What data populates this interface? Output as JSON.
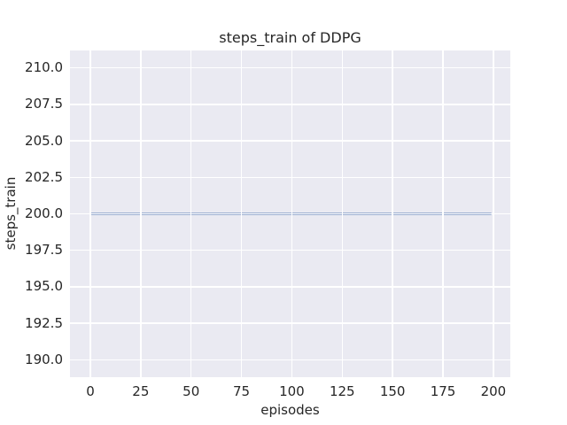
{
  "chart_data": {
    "type": "line",
    "title": "steps_train of DDPG",
    "xlabel": "episodes",
    "ylabel": "steps_train",
    "x": [
      0,
      199
    ],
    "series": [
      {
        "name": "steps_train",
        "values": [
          200,
          200
        ]
      }
    ],
    "note": "constant value 200 steps for every episode from 0 to 199",
    "xlim": [
      -10.1,
      208.4
    ],
    "ylim": [
      188.8,
      211.2
    ],
    "xticks": {
      "values": [
        0,
        25,
        50,
        75,
        100,
        125,
        150,
        175,
        200
      ],
      "labels": [
        "0",
        "25",
        "50",
        "75",
        "100",
        "125",
        "150",
        "175",
        "200"
      ]
    },
    "yticks": {
      "values": [
        190,
        192.5,
        195,
        197.5,
        200,
        202.5,
        205,
        207.5,
        210
      ],
      "labels": [
        "190.0",
        "192.5",
        "195.0",
        "197.5",
        "200.0",
        "202.5",
        "205.0",
        "207.5",
        "210.0"
      ]
    },
    "grid": true,
    "legend": false,
    "colors": {
      "line": "#4C72B0",
      "plot_background": "#EAEAF2",
      "gridline": "#FFFFFF",
      "text": "#262626",
      "figure_background": "#FFFFFF"
    }
  }
}
